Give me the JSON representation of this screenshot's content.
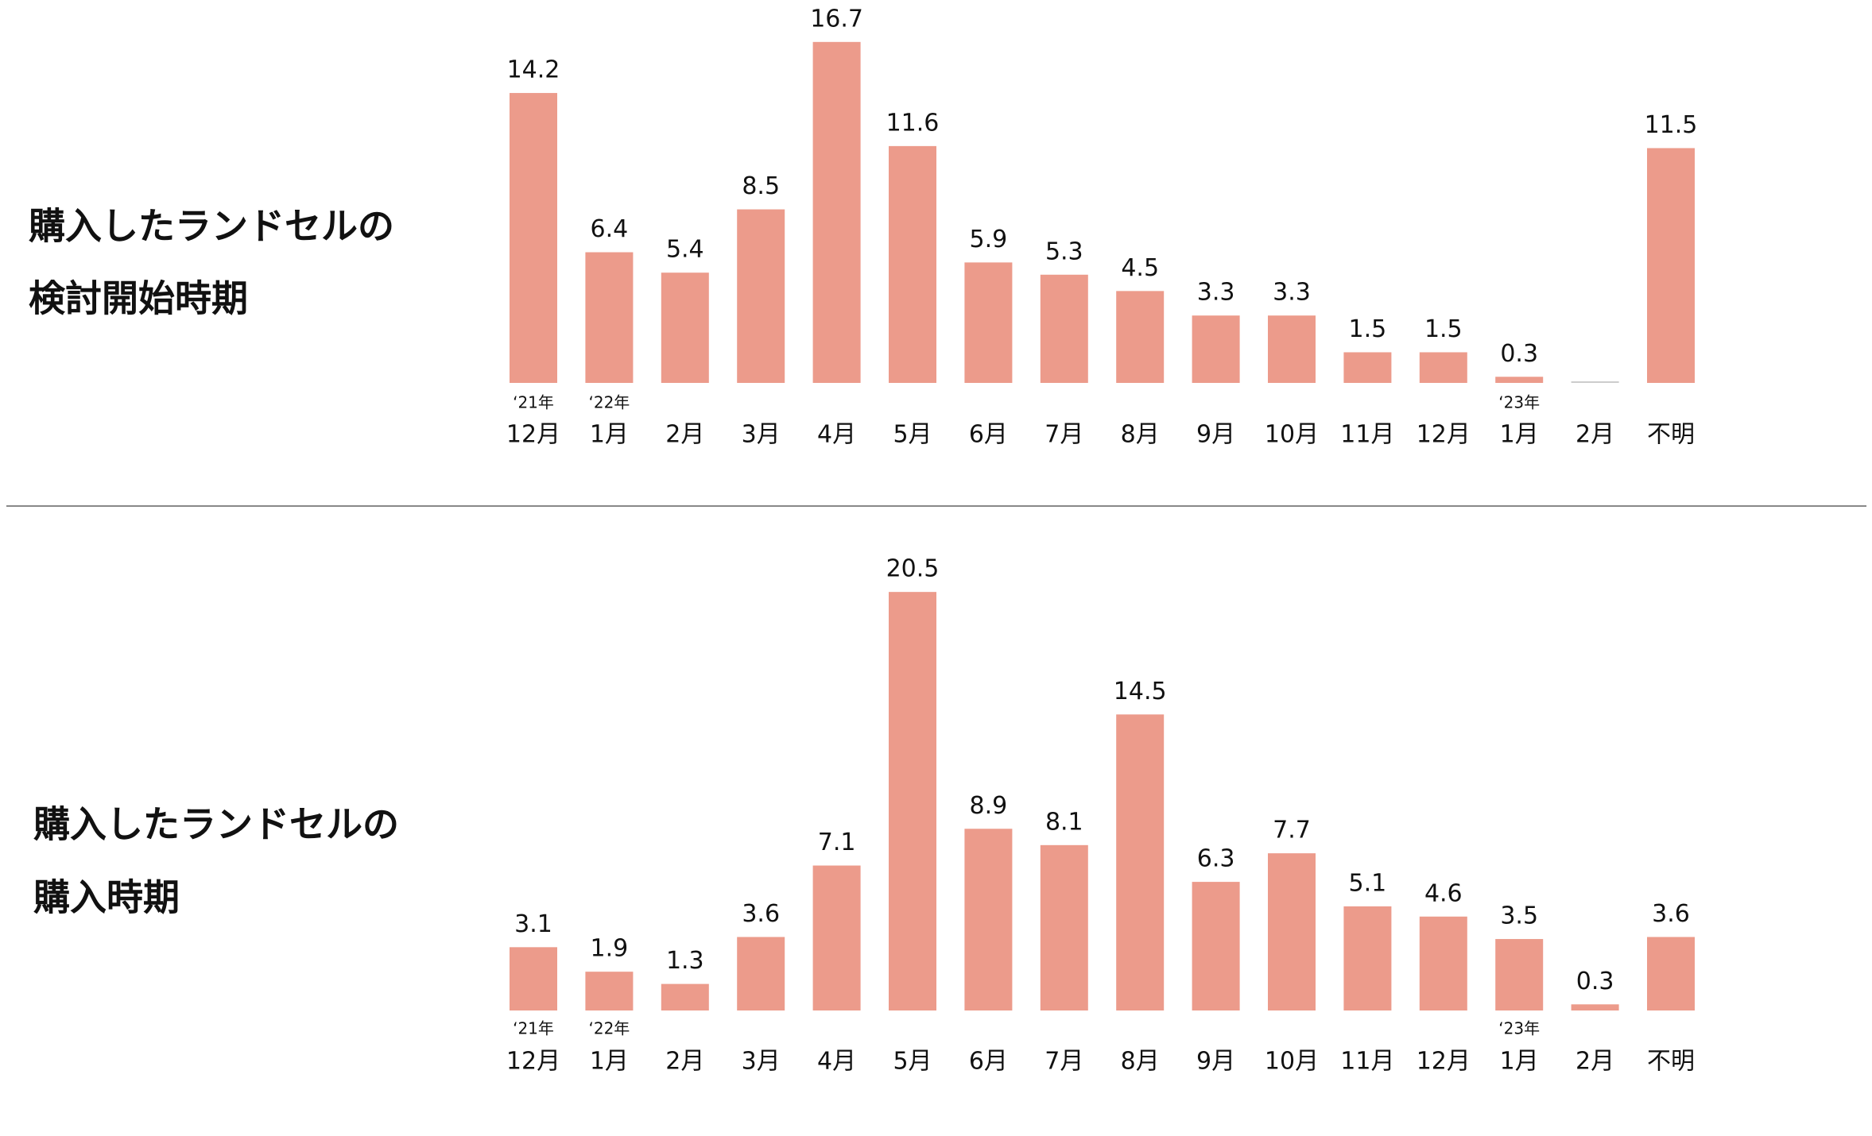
{
  "chart_data": [
    {
      "type": "bar",
      "title_lines": [
        "購入したランドセルの",
        "検討開始時期"
      ],
      "categories": [
        "12月",
        "1月",
        "2月",
        "3月",
        "4月",
        "5月",
        "6月",
        "7月",
        "8月",
        "9月",
        "10月",
        "11月",
        "12月",
        "1月",
        "2月",
        "不明"
      ],
      "year_labels": [
        "‘21年",
        "‘22年",
        null,
        null,
        null,
        null,
        null,
        null,
        null,
        null,
        null,
        null,
        null,
        "‘23年",
        null,
        null
      ],
      "values": [
        14.2,
        6.4,
        5.4,
        8.5,
        16.7,
        11.6,
        5.9,
        5.3,
        4.5,
        3.3,
        3.3,
        1.5,
        1.5,
        0.3,
        null,
        11.5
      ],
      "color": "#ec9b8b"
    },
    {
      "type": "bar",
      "title_lines": [
        "購入したランドセルの",
        "購入時期"
      ],
      "categories": [
        "12月",
        "1月",
        "2月",
        "3月",
        "4月",
        "5月",
        "6月",
        "7月",
        "8月",
        "9月",
        "10月",
        "11月",
        "12月",
        "1月",
        "2月",
        "不明"
      ],
      "year_labels": [
        "‘21年",
        "‘22年",
        null,
        null,
        null,
        null,
        null,
        null,
        null,
        null,
        null,
        null,
        null,
        "‘23年",
        null,
        null
      ],
      "values": [
        3.1,
        1.9,
        1.3,
        3.6,
        7.1,
        20.5,
        8.9,
        8.1,
        14.5,
        6.3,
        7.7,
        5.1,
        4.6,
        3.5,
        0.3,
        3.6
      ],
      "color": "#ec9b8b"
    }
  ]
}
